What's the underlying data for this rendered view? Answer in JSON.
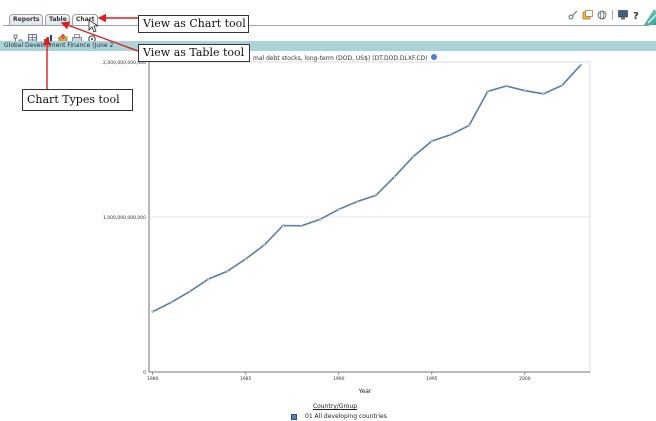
{
  "tabs": [
    {
      "label": "Reports"
    },
    {
      "label": "Table"
    },
    {
      "label": "Chart",
      "active": true
    }
  ],
  "toolbar": {
    "icons": [
      "grid-icon",
      "table-icon",
      "chart-types-icon",
      "export-icon",
      "print-icon",
      "settings-icon"
    ]
  },
  "top_right_icons": [
    "key-icon",
    "copy-icon",
    "globe-icon",
    "monitor-icon",
    "help-icon",
    "logo-icon"
  ],
  "banner": {
    "text": "Global Development Finance (June 2"
  },
  "chart_title_fragment": "mal debt stocks, long-term (DOD, US$) (DT.DOD.DLXF.CD)",
  "callouts": {
    "chart_tool": "View as Chart tool",
    "table_tool": "View as Table tool",
    "chart_types_tool": "Chart Types tool"
  },
  "colors": {
    "banner": "#a9d3d9",
    "line": "#5b7ca6",
    "callout_arrow": "#e01b1b"
  },
  "chart_data": {
    "type": "line",
    "xlabel": "Year",
    "ylabel": "",
    "x_ticks": [
      1980,
      1985,
      1990,
      1995,
      2000
    ],
    "y_ticks": [
      0,
      1000000000000,
      2000000000000
    ],
    "y_tick_labels": [
      "0",
      "1,000,000,000,000",
      "2,000,000,000,000"
    ],
    "xlim": [
      1979.8,
      2003.5
    ],
    "ylim": [
      0,
      2000000000000
    ],
    "grid": "horizontal",
    "legend_placement": "bottom",
    "legend_title": "Country/Group",
    "series": [
      {
        "name": "01 All developing countries",
        "x": [
          1980,
          1981,
          1982,
          1983,
          1984,
          1985,
          1986,
          1987,
          1988,
          1989,
          1990,
          1991,
          1992,
          1993,
          1994,
          1995,
          1996,
          1997,
          1998,
          1999,
          2000,
          2001,
          2002,
          2003
        ],
        "values": [
          390000000000,
          450000000000,
          520000000000,
          600000000000,
          650000000000,
          730000000000,
          820000000000,
          945000000000,
          943000000000,
          985000000000,
          1050000000000,
          1100000000000,
          1140000000000,
          1260000000000,
          1390000000000,
          1490000000000,
          1530000000000,
          1590000000000,
          1810000000000,
          1845000000000,
          1815000000000,
          1795000000000,
          1850000000000,
          1980000000000
        ]
      }
    ]
  }
}
